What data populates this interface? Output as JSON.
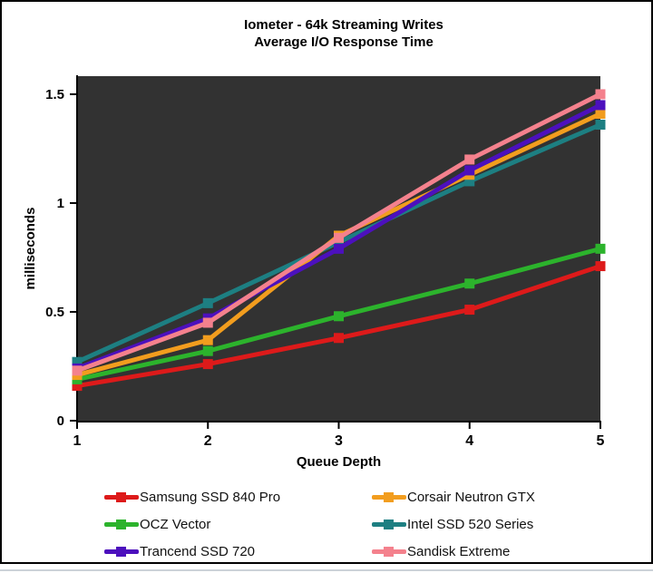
{
  "title": {
    "line1": "Iometer - 64k Streaming Writes",
    "line2": "Average I/O Response Time"
  },
  "chart_data": {
    "type": "line",
    "x": [
      1,
      2,
      3,
      4,
      5
    ],
    "xtick_labels": [
      "1",
      "2",
      "3",
      "4",
      "5"
    ],
    "yticks": [
      0,
      0.5,
      1,
      1.5
    ],
    "ytick_labels": [
      "0",
      "0.5",
      "1",
      "1.5"
    ],
    "xlabel": "Queue Depth",
    "ylabel": "milliseconds",
    "ylim": [
      0,
      1.583
    ],
    "grid": false,
    "plot_bg": "#323232",
    "axis_color": "#000000",
    "series": [
      {
        "name": "Samsung SSD 840 Pro",
        "color": "#dd1a1a",
        "values": [
          0.16,
          0.26,
          0.38,
          0.51,
          0.71
        ]
      },
      {
        "name": "OCZ Vector",
        "color": "#2cb32c",
        "values": [
          0.19,
          0.32,
          0.48,
          0.63,
          0.79
        ]
      },
      {
        "name": "Intel SSD 520 Series",
        "color": "#1d7f82",
        "values": [
          0.27,
          0.54,
          0.82,
          1.1,
          1.36
        ]
      },
      {
        "name": "Corsair Neutron GTX",
        "color": "#f29d1e",
        "values": [
          0.21,
          0.37,
          0.85,
          1.13,
          1.41
        ]
      },
      {
        "name": "Trancend SSD 720",
        "color": "#4c10bd",
        "values": [
          0.24,
          0.47,
          0.79,
          1.15,
          1.45
        ]
      },
      {
        "name": "Sandisk Extreme",
        "color": "#f4818d",
        "values": [
          0.23,
          0.45,
          0.84,
          1.2,
          1.5
        ]
      }
    ],
    "legend": {
      "position": "bottom",
      "order": [
        "Samsung SSD 840 Pro",
        "Corsair Neutron GTX",
        "OCZ Vector",
        "Intel SSD 520 Series",
        "Trancend SSD 720",
        "Sandisk Extreme"
      ]
    }
  }
}
